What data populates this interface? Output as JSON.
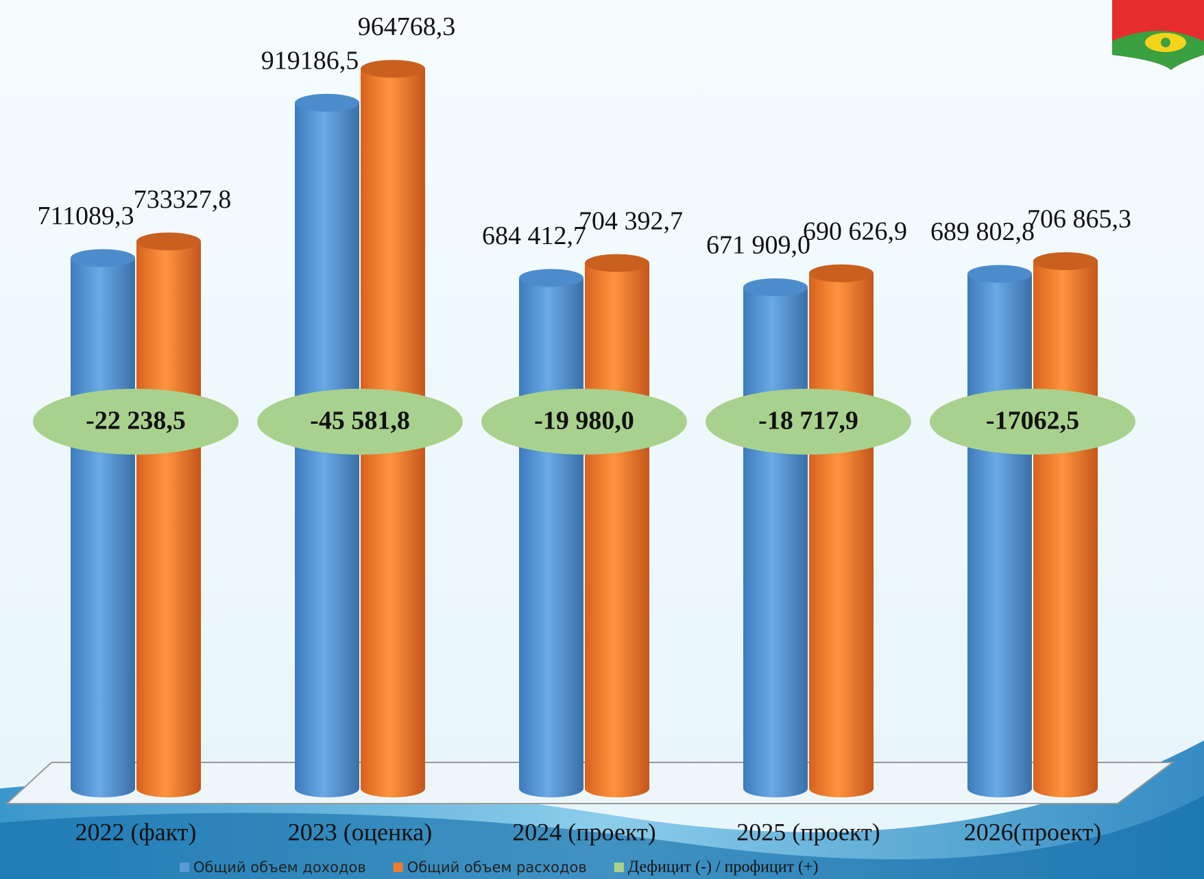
{
  "chart_data": {
    "type": "bar",
    "categories": [
      "2022 (факт)",
      "2023 (оценка)",
      "2024 (проект)",
      "2025 (проект)",
      "2026(проект)"
    ],
    "series": [
      {
        "name": "Общий объем доходов",
        "color": "#5b9bd5",
        "values": [
          711089.3,
          919186.5,
          684412.7,
          671909.0,
          689802.8
        ],
        "value_labels": [
          "711089,3",
          "919186,5",
          "684 412,7",
          "671 909,0",
          "689 802,8"
        ]
      },
      {
        "name": "Общий объем расходов",
        "color": "#ed7d31",
        "values": [
          733327.8,
          964768.3,
          704392.7,
          690626.9,
          706865.3
        ],
        "value_labels": [
          "733327,8",
          "964768,3",
          "704 392,7",
          "690 626,9",
          "706 865,3"
        ]
      },
      {
        "name": "Дефицит (-) / профицит (+)",
        "color": "#a9d18e",
        "values": [
          -22238.5,
          -45581.8,
          -19980.0,
          -18717.9,
          -17062.5
        ],
        "value_labels": [
          "-22 238,5",
          "-45 581,8",
          "-19 980,0",
          "-18 717,9",
          "-17062,5"
        ]
      }
    ],
    "ylim": [
      0,
      1000000
    ]
  }
}
